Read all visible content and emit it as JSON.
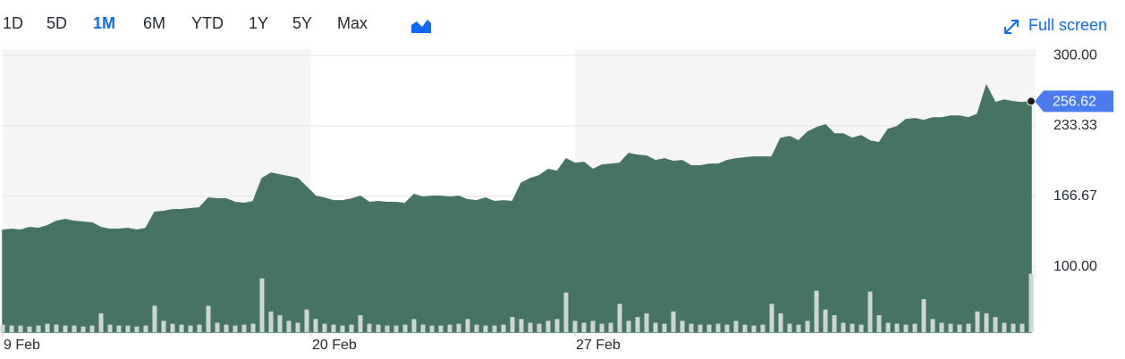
{
  "toolbar": {
    "ranges": [
      "1D",
      "5D",
      "1M",
      "6M",
      "YTD",
      "1Y",
      "5Y",
      "Max"
    ],
    "active_index": 2,
    "fullscreen": "Full screen"
  },
  "chart_data": {
    "type": "area",
    "x": [
      0,
      1,
      2,
      3,
      4,
      5,
      6,
      7,
      8,
      9,
      10,
      11,
      12,
      13,
      14,
      15,
      16,
      17,
      18,
      19,
      20,
      21,
      22,
      23,
      24,
      25,
      26,
      27,
      28,
      29,
      30,
      31,
      32,
      33,
      34,
      35,
      36,
      37,
      38,
      39,
      40,
      41,
      42,
      43,
      44,
      45,
      46,
      47,
      48,
      49,
      50,
      51,
      52,
      53,
      54,
      55,
      56,
      57,
      58,
      59,
      60,
      61,
      62,
      63,
      64,
      65,
      66,
      67,
      68,
      69,
      70,
      71,
      72,
      73,
      74,
      75,
      76,
      77,
      78,
      79,
      80,
      81,
      82,
      83,
      84,
      85,
      86,
      87,
      88,
      89,
      90,
      91,
      92,
      93,
      94,
      95,
      96,
      97,
      98,
      99,
      100,
      101,
      102,
      103,
      104,
      105,
      106,
      107,
      108,
      109,
      110,
      111,
      112,
      113,
      114,
      115
    ],
    "xlim": [
      0,
      115.5
    ],
    "xticks": [
      {
        "value": 0,
        "label": "9 Feb"
      },
      {
        "value": 34.5,
        "label": "20 Feb"
      },
      {
        "value": 64,
        "label": "27 Feb"
      }
    ],
    "ylim": [
      38,
      306
    ],
    "yticks": [
      {
        "value": 300,
        "label": "300.00"
      },
      233.33,
      166.67,
      {
        "value": 100,
        "label": "100.00"
      }
    ],
    "y2lim": [
      0,
      300
    ],
    "grid": true,
    "series": [
      {
        "color": "#467462",
        "values": [
          134.6,
          135.4,
          134.6,
          137.1,
          136.3,
          138.8,
          143.0,
          144.7,
          143.0,
          142.2,
          141.4,
          137.1,
          135.4,
          135.4,
          136.3,
          134.6,
          136.3,
          151.5,
          152.3,
          154.0,
          154.0,
          154.9,
          155.7,
          165.0,
          164.1,
          164.1,
          160.8,
          159.9,
          161.6,
          183.5,
          188.6,
          186.9,
          185.2,
          183.5,
          175.1,
          166.7,
          165.0,
          162.4,
          162.4,
          164.1,
          166.7,
          160.8,
          161.6,
          160.8,
          160.8,
          159.9,
          168.4,
          165.8,
          166.7,
          166.7,
          165.8,
          166.7,
          163.3,
          162.4,
          165.0,
          161.6,
          162.4,
          161.6,
          179.3,
          183.5,
          186.1,
          192.0,
          190.3,
          202.1,
          197.9,
          198.7,
          192.0,
          196.2,
          197.0,
          197.9,
          207.2,
          205.5,
          204.6,
          200.4,
          202.1,
          199.6,
          200.4,
          195.4,
          195.4,
          197.0,
          197.0,
          200.4,
          202.1,
          203.0,
          203.8,
          203.8,
          203.8,
          221.5,
          223.2,
          219.0,
          227.4,
          231.6,
          234.2,
          225.7,
          225.7,
          221.5,
          224.1,
          219.0,
          217.3,
          230.0,
          232.5,
          239.2,
          240.1,
          238.4,
          240.9,
          240.9,
          242.6,
          242.6,
          240.9,
          244.3,
          271.3,
          255.3,
          257.8,
          256.1,
          255.3,
          256.62
        ]
      },
      {
        "color": "#cbd7d0",
        "axis": "y2",
        "values": [
          8,
          7,
          7,
          6,
          7,
          9,
          8,
          7,
          7,
          6,
          7,
          20,
          8,
          7,
          7,
          6,
          7,
          28,
          12,
          9,
          8,
          7,
          8,
          28,
          10,
          8,
          7,
          8,
          9,
          57,
          22,
          18,
          12,
          10,
          24,
          14,
          9,
          8,
          7,
          8,
          18,
          9,
          8,
          7,
          7,
          8,
          14,
          8,
          7,
          7,
          8,
          9,
          14,
          8,
          7,
          7,
          8,
          16,
          14,
          10,
          9,
          12,
          14,
          42,
          12,
          10,
          12,
          9,
          10,
          30,
          12,
          16,
          20,
          10,
          9,
          22,
          12,
          9,
          8,
          8,
          9,
          8,
          12,
          8,
          7,
          8,
          30,
          20,
          9,
          8,
          12,
          44,
          24,
          18,
          10,
          9,
          8,
          43,
          18,
          10,
          9,
          8,
          9,
          35,
          14,
          10,
          9,
          8,
          9,
          22,
          20,
          16,
          10,
          9,
          9,
          62
        ]
      }
    ]
  }
}
